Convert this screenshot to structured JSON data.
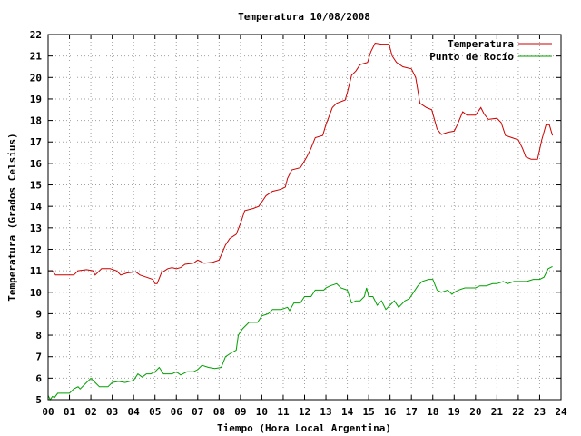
{
  "chart_data": {
    "type": "line",
    "title": "Temperatura 10/08/2008",
    "xlabel": "Tiempo (Hora Local Argentina)",
    "ylabel": "Temperatura (Grados Celsius)",
    "xlim": [
      0,
      24
    ],
    "ylim": [
      5,
      22
    ],
    "xticks": [
      {
        "v": 0,
        "label": "00"
      },
      {
        "v": 1,
        "label": "01"
      },
      {
        "v": 2,
        "label": "02"
      },
      {
        "v": 3,
        "label": "03"
      },
      {
        "v": 4,
        "label": "04"
      },
      {
        "v": 5,
        "label": "05"
      },
      {
        "v": 6,
        "label": "06"
      },
      {
        "v": 7,
        "label": "07"
      },
      {
        "v": 8,
        "label": "08"
      },
      {
        "v": 9,
        "label": "09"
      },
      {
        "v": 10,
        "label": "10"
      },
      {
        "v": 11,
        "label": "11"
      },
      {
        "v": 12,
        "label": "12"
      },
      {
        "v": 13,
        "label": "13"
      },
      {
        "v": 14,
        "label": "14"
      },
      {
        "v": 15,
        "label": "15"
      },
      {
        "v": 16,
        "label": "16"
      },
      {
        "v": 17,
        "label": "17"
      },
      {
        "v": 18,
        "label": "18"
      },
      {
        "v": 19,
        "label": "19"
      },
      {
        "v": 20,
        "label": "20"
      },
      {
        "v": 21,
        "label": "21"
      },
      {
        "v": 22,
        "label": "22"
      },
      {
        "v": 23,
        "label": "23"
      },
      {
        "v": 24,
        "label": "24"
      }
    ],
    "yticks": [
      {
        "v": 5,
        "label": "5"
      },
      {
        "v": 6,
        "label": "6"
      },
      {
        "v": 7,
        "label": "7"
      },
      {
        "v": 8,
        "label": "8"
      },
      {
        "v": 9,
        "label": "9"
      },
      {
        "v": 10,
        "label": "10"
      },
      {
        "v": 11,
        "label": "11"
      },
      {
        "v": 12,
        "label": "12"
      },
      {
        "v": 13,
        "label": "13"
      },
      {
        "v": 14,
        "label": "14"
      },
      {
        "v": 15,
        "label": "15"
      },
      {
        "v": 16,
        "label": "16"
      },
      {
        "v": 17,
        "label": "17"
      },
      {
        "v": 18,
        "label": "18"
      },
      {
        "v": 19,
        "label": "19"
      },
      {
        "v": 20,
        "label": "20"
      },
      {
        "v": 21,
        "label": "21"
      },
      {
        "v": 22,
        "label": "22"
      }
    ],
    "grid": true,
    "legend_position": "top-right",
    "series": [
      {
        "name": "Temperatura",
        "color": "#cc0000",
        "points": [
          [
            0.0,
            11.0
          ],
          [
            0.2,
            11.0
          ],
          [
            0.35,
            10.8
          ],
          [
            0.6,
            10.8
          ],
          [
            1.0,
            10.8
          ],
          [
            1.2,
            10.8
          ],
          [
            1.4,
            11.0
          ],
          [
            1.8,
            11.05
          ],
          [
            2.1,
            11.0
          ],
          [
            2.2,
            10.8
          ],
          [
            2.5,
            11.1
          ],
          [
            2.9,
            11.1
          ],
          [
            3.2,
            11.0
          ],
          [
            3.4,
            10.8
          ],
          [
            3.7,
            10.9
          ],
          [
            4.1,
            10.95
          ],
          [
            4.3,
            10.8
          ],
          [
            4.6,
            10.7
          ],
          [
            4.9,
            10.6
          ],
          [
            5.0,
            10.4
          ],
          [
            5.1,
            10.4
          ],
          [
            5.3,
            10.9
          ],
          [
            5.6,
            11.1
          ],
          [
            5.8,
            11.15
          ],
          [
            6.0,
            11.1
          ],
          [
            6.2,
            11.15
          ],
          [
            6.4,
            11.3
          ],
          [
            6.8,
            11.35
          ],
          [
            7.0,
            11.5
          ],
          [
            7.3,
            11.35
          ],
          [
            7.7,
            11.4
          ],
          [
            8.0,
            11.5
          ],
          [
            8.3,
            12.2
          ],
          [
            8.5,
            12.5
          ],
          [
            8.8,
            12.7
          ],
          [
            9.0,
            13.2
          ],
          [
            9.2,
            13.8
          ],
          [
            9.6,
            13.9
          ],
          [
            9.85,
            14.0
          ],
          [
            10.0,
            14.2
          ],
          [
            10.2,
            14.5
          ],
          [
            10.5,
            14.7
          ],
          [
            10.9,
            14.8
          ],
          [
            11.1,
            14.9
          ],
          [
            11.2,
            15.3
          ],
          [
            11.4,
            15.7
          ],
          [
            11.8,
            15.8
          ],
          [
            11.9,
            15.95
          ],
          [
            12.1,
            16.3
          ],
          [
            12.3,
            16.7
          ],
          [
            12.5,
            17.2
          ],
          [
            12.85,
            17.3
          ],
          [
            13.0,
            17.8
          ],
          [
            13.3,
            18.6
          ],
          [
            13.5,
            18.8
          ],
          [
            13.9,
            18.95
          ],
          [
            14.0,
            19.3
          ],
          [
            14.2,
            20.1
          ],
          [
            14.4,
            20.3
          ],
          [
            14.6,
            20.6
          ],
          [
            14.95,
            20.7
          ],
          [
            15.1,
            21.2
          ],
          [
            15.3,
            21.6
          ],
          [
            15.6,
            21.55
          ],
          [
            15.95,
            21.55
          ],
          [
            16.1,
            21.0
          ],
          [
            16.3,
            20.7
          ],
          [
            16.6,
            20.5
          ],
          [
            17.0,
            20.4
          ],
          [
            17.2,
            20.0
          ],
          [
            17.4,
            18.8
          ],
          [
            17.7,
            18.6
          ],
          [
            17.95,
            18.5
          ],
          [
            18.2,
            17.6
          ],
          [
            18.4,
            17.35
          ],
          [
            18.7,
            17.45
          ],
          [
            19.0,
            17.5
          ],
          [
            19.15,
            17.8
          ],
          [
            19.4,
            18.4
          ],
          [
            19.6,
            18.25
          ],
          [
            20.0,
            18.25
          ],
          [
            20.25,
            18.6
          ],
          [
            20.4,
            18.3
          ],
          [
            20.6,
            18.05
          ],
          [
            21.0,
            18.1
          ],
          [
            21.2,
            17.9
          ],
          [
            21.4,
            17.3
          ],
          [
            21.7,
            17.2
          ],
          [
            22.0,
            17.1
          ],
          [
            22.2,
            16.7
          ],
          [
            22.35,
            16.3
          ],
          [
            22.6,
            16.2
          ],
          [
            22.9,
            16.2
          ],
          [
            23.1,
            17.1
          ],
          [
            23.3,
            17.8
          ],
          [
            23.45,
            17.8
          ],
          [
            23.6,
            17.3
          ]
        ]
      },
      {
        "name": "Punto de Rocío",
        "color": "#00a000",
        "points": [
          [
            0.0,
            5.2
          ],
          [
            0.1,
            5.0
          ],
          [
            0.2,
            5.15
          ],
          [
            0.3,
            5.1
          ],
          [
            0.45,
            5.3
          ],
          [
            0.7,
            5.3
          ],
          [
            1.0,
            5.3
          ],
          [
            1.2,
            5.5
          ],
          [
            1.4,
            5.6
          ],
          [
            1.5,
            5.5
          ],
          [
            1.8,
            5.8
          ],
          [
            2.0,
            6.0
          ],
          [
            2.2,
            5.8
          ],
          [
            2.4,
            5.6
          ],
          [
            2.8,
            5.6
          ],
          [
            3.0,
            5.8
          ],
          [
            3.3,
            5.85
          ],
          [
            3.6,
            5.8
          ],
          [
            4.0,
            5.9
          ],
          [
            4.2,
            6.2
          ],
          [
            4.4,
            6.05
          ],
          [
            4.6,
            6.2
          ],
          [
            4.8,
            6.2
          ],
          [
            5.0,
            6.3
          ],
          [
            5.2,
            6.5
          ],
          [
            5.4,
            6.2
          ],
          [
            5.6,
            6.2
          ],
          [
            5.8,
            6.2
          ],
          [
            6.0,
            6.3
          ],
          [
            6.2,
            6.15
          ],
          [
            6.5,
            6.3
          ],
          [
            6.8,
            6.3
          ],
          [
            7.0,
            6.4
          ],
          [
            7.2,
            6.6
          ],
          [
            7.5,
            6.5
          ],
          [
            7.8,
            6.45
          ],
          [
            8.1,
            6.5
          ],
          [
            8.3,
            7.0
          ],
          [
            8.6,
            7.2
          ],
          [
            8.8,
            7.3
          ],
          [
            8.9,
            8.0
          ],
          [
            9.1,
            8.3
          ],
          [
            9.4,
            8.6
          ],
          [
            9.6,
            8.6
          ],
          [
            9.8,
            8.6
          ],
          [
            10.0,
            8.9
          ],
          [
            10.3,
            9.0
          ],
          [
            10.5,
            9.2
          ],
          [
            10.9,
            9.2
          ],
          [
            11.2,
            9.3
          ],
          [
            11.3,
            9.15
          ],
          [
            11.5,
            9.5
          ],
          [
            11.8,
            9.5
          ],
          [
            12.0,
            9.8
          ],
          [
            12.3,
            9.8
          ],
          [
            12.5,
            10.1
          ],
          [
            12.9,
            10.1
          ],
          [
            13.0,
            10.2
          ],
          [
            13.2,
            10.3
          ],
          [
            13.5,
            10.4
          ],
          [
            13.7,
            10.2
          ],
          [
            14.0,
            10.1
          ],
          [
            14.2,
            9.5
          ],
          [
            14.4,
            9.6
          ],
          [
            14.6,
            9.6
          ],
          [
            14.8,
            9.8
          ],
          [
            14.9,
            10.2
          ],
          [
            15.0,
            9.8
          ],
          [
            15.2,
            9.8
          ],
          [
            15.4,
            9.4
          ],
          [
            15.6,
            9.6
          ],
          [
            15.8,
            9.2
          ],
          [
            16.0,
            9.4
          ],
          [
            16.2,
            9.6
          ],
          [
            16.4,
            9.3
          ],
          [
            16.7,
            9.6
          ],
          [
            16.9,
            9.7
          ],
          [
            17.1,
            10.0
          ],
          [
            17.3,
            10.3
          ],
          [
            17.5,
            10.5
          ],
          [
            17.8,
            10.6
          ],
          [
            18.0,
            10.6
          ],
          [
            18.2,
            10.1
          ],
          [
            18.4,
            10.0
          ],
          [
            18.7,
            10.1
          ],
          [
            18.9,
            9.9
          ],
          [
            19.0,
            10.0
          ],
          [
            19.2,
            10.1
          ],
          [
            19.5,
            10.2
          ],
          [
            19.8,
            10.2
          ],
          [
            20.0,
            10.2
          ],
          [
            20.2,
            10.3
          ],
          [
            20.5,
            10.3
          ],
          [
            20.8,
            10.4
          ],
          [
            21.0,
            10.4
          ],
          [
            21.3,
            10.5
          ],
          [
            21.5,
            10.4
          ],
          [
            21.8,
            10.5
          ],
          [
            22.1,
            10.5
          ],
          [
            22.4,
            10.5
          ],
          [
            22.7,
            10.6
          ],
          [
            23.0,
            10.6
          ],
          [
            23.2,
            10.7
          ],
          [
            23.4,
            11.1
          ],
          [
            23.6,
            11.2
          ]
        ]
      }
    ]
  }
}
